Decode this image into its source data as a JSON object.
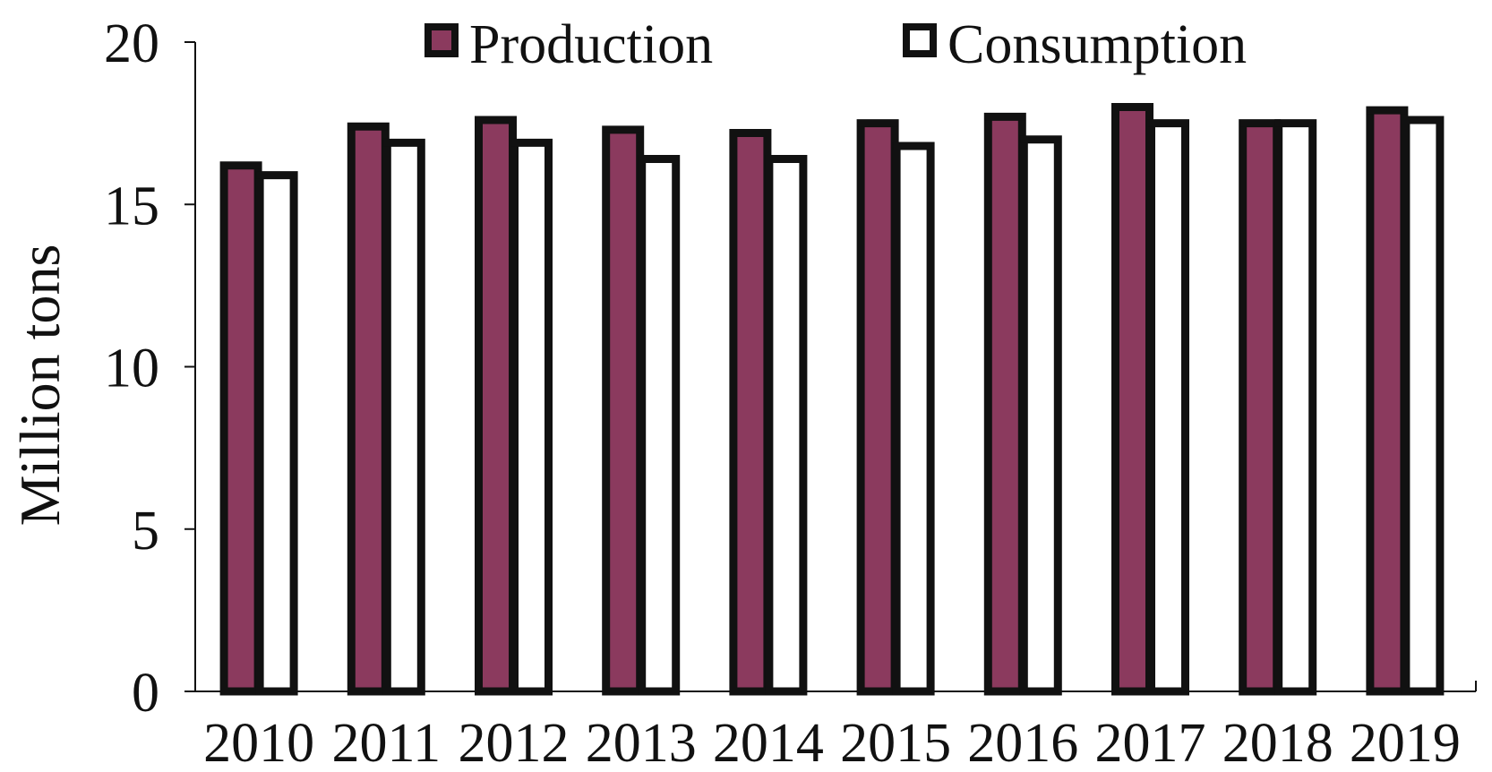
{
  "chart_data": {
    "type": "bar",
    "title": "",
    "xlabel": "",
    "ylabel": "Million tons",
    "categories": [
      "2010",
      "2011",
      "2012",
      "2013",
      "2014",
      "2015",
      "2016",
      "2017",
      "2018",
      "2019"
    ],
    "series": [
      {
        "name": "Production",
        "color": "#8B3A5E",
        "values": [
          16.2,
          17.4,
          17.6,
          17.3,
          17.2,
          17.5,
          17.7,
          18.0,
          17.5,
          17.9
        ]
      },
      {
        "name": "Consumption",
        "color": "#FFFFFF",
        "values": [
          15.9,
          16.9,
          16.9,
          16.4,
          16.4,
          16.8,
          17.0,
          17.5,
          17.5,
          17.6
        ]
      }
    ],
    "ylim": [
      0,
      20
    ],
    "yticks": [
      "0",
      "5",
      "10",
      "15",
      "20"
    ],
    "grid": false,
    "legend_position": "top"
  }
}
